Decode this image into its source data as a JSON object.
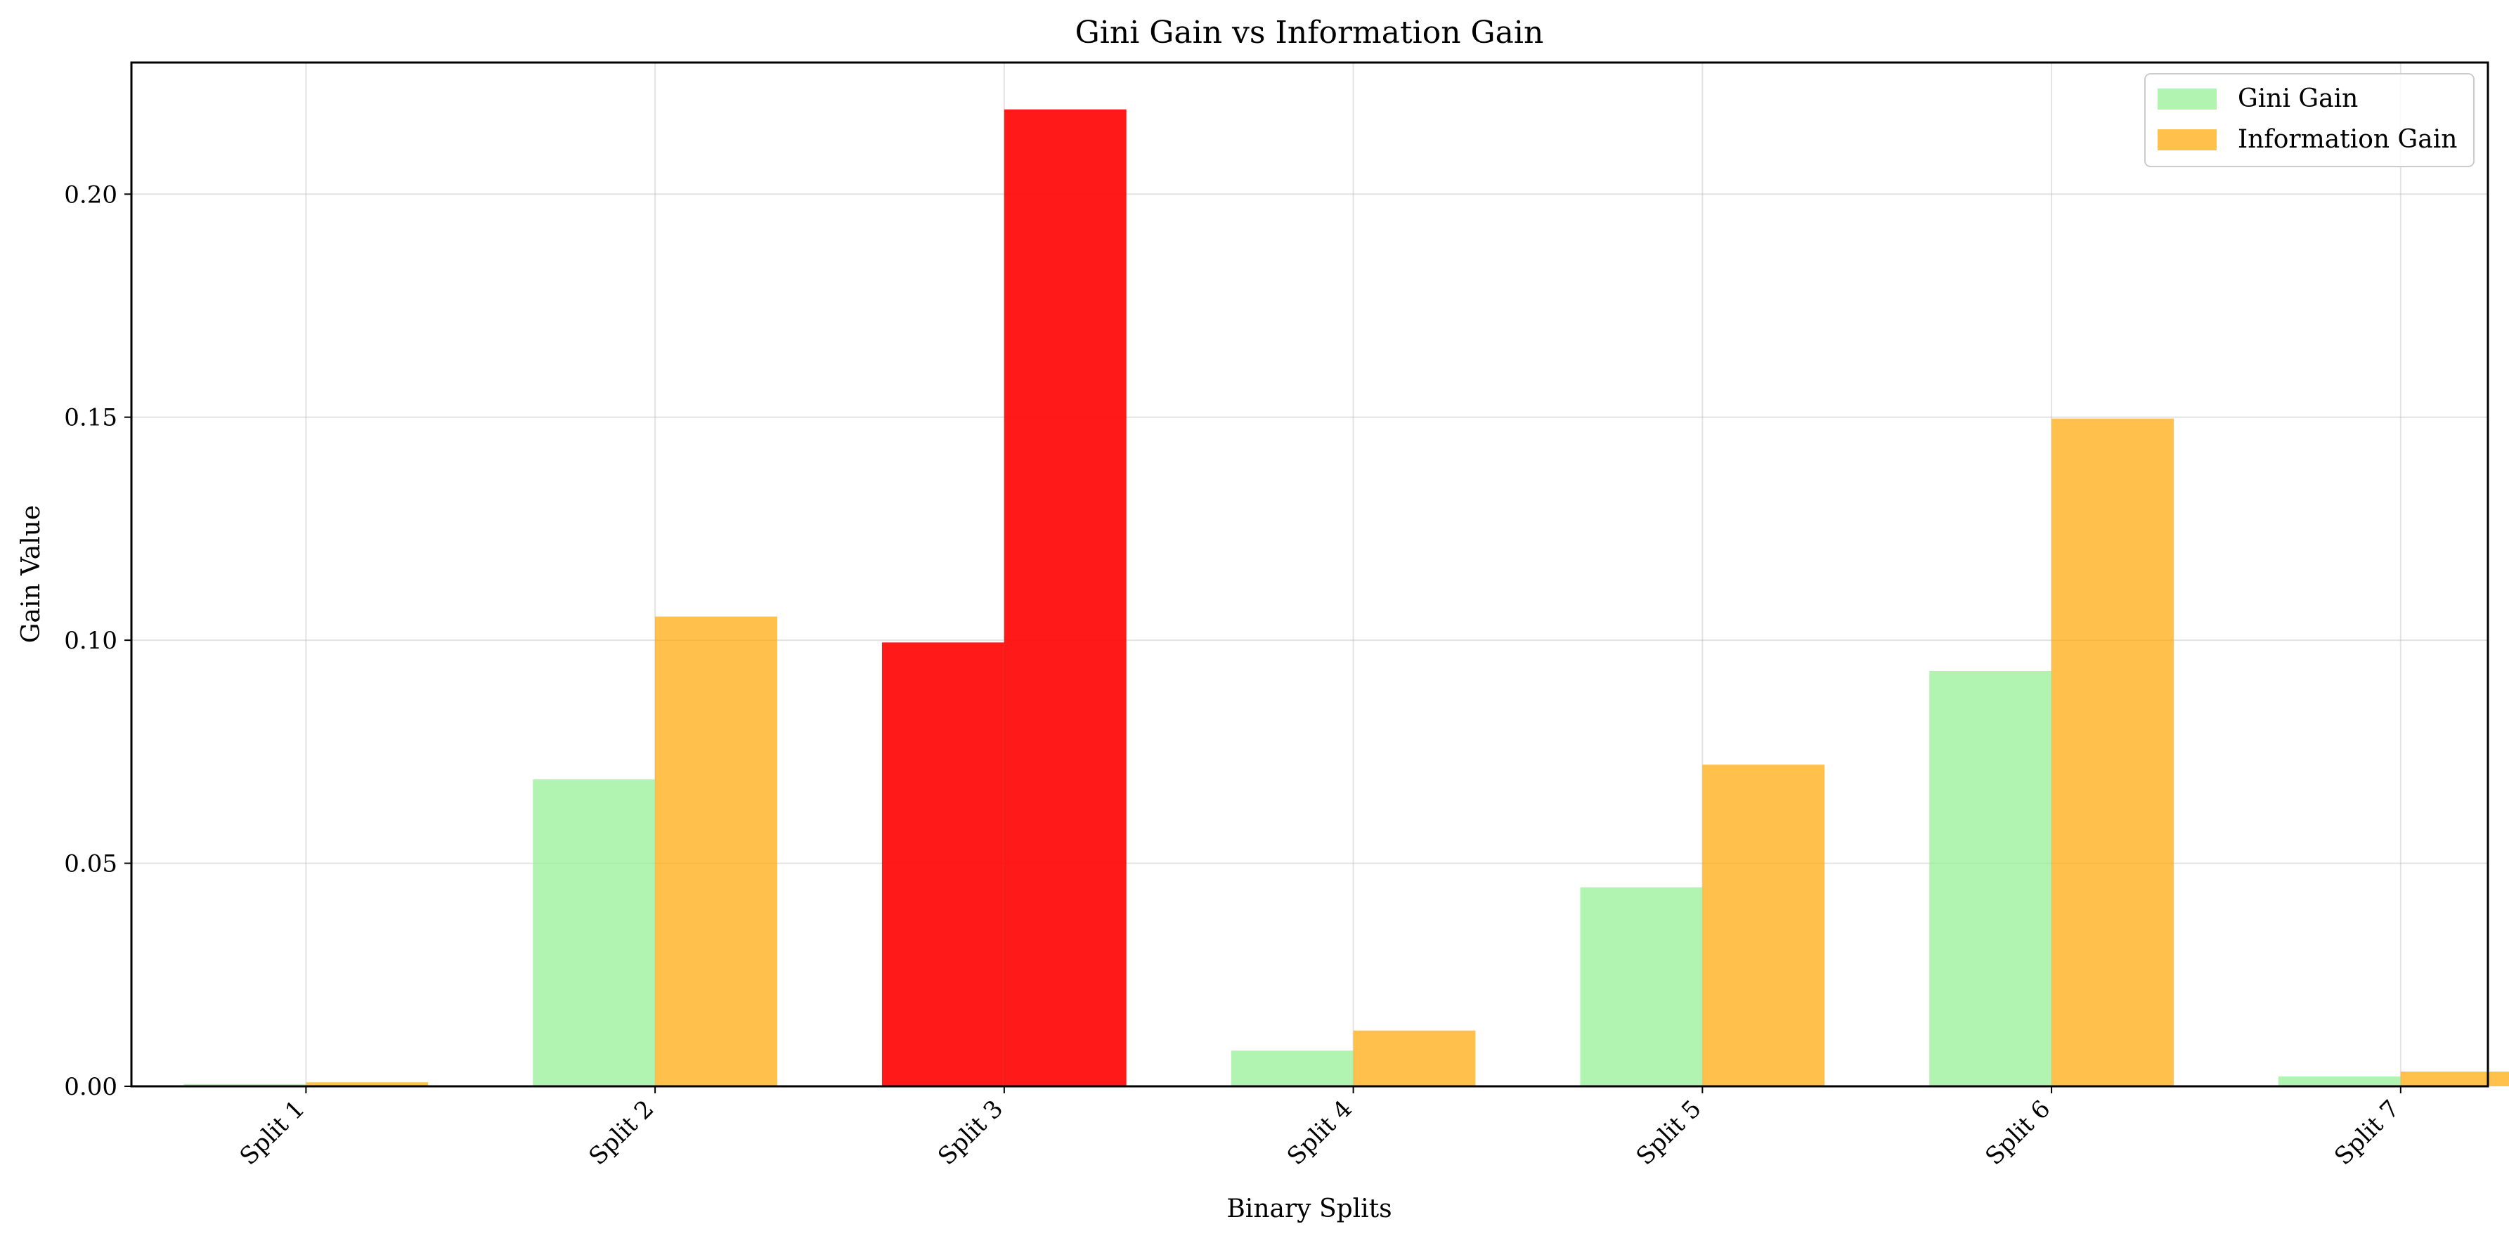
{
  "chart_data": {
    "type": "bar",
    "title": "Gini Gain vs Information Gain",
    "xlabel": "Binary Splits",
    "ylabel": "Gain Value",
    "categories": [
      "Split 1",
      "Split 2",
      "Split 3",
      "Split 4",
      "Split 5",
      "Split 6",
      "Split 7"
    ],
    "series": [
      {
        "name": "Gini Gain",
        "color": "#90EE90",
        "values": [
          0.0005,
          0.0688,
          0.0995,
          0.008,
          0.0446,
          0.0931,
          0.0022
        ]
      },
      {
        "name": "Information Gain",
        "color": "#FFA500",
        "values": [
          0.0009,
          0.1053,
          0.219,
          0.0125,
          0.0721,
          0.1497,
          0.0033
        ]
      }
    ],
    "highlight": {
      "category": "Split 3",
      "color": "#FF0000"
    },
    "ylim": [
      0,
      0.2295
    ],
    "yticks": [
      0.0,
      0.05,
      0.1,
      0.15,
      0.2
    ],
    "ytick_labels": [
      "0.00",
      "0.05",
      "0.10",
      "0.15",
      "0.20"
    ],
    "grid": true,
    "legend_position": "top-right"
  }
}
